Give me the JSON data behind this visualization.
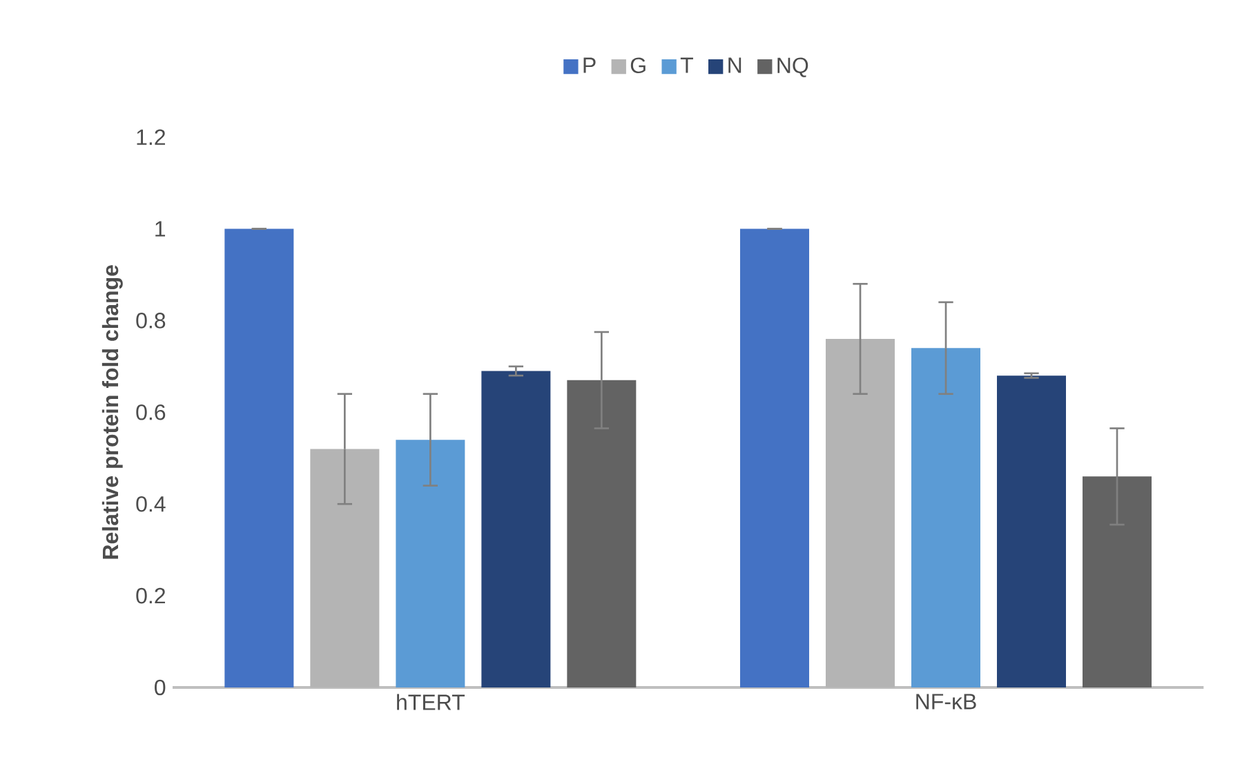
{
  "chart_data": {
    "type": "bar",
    "ylabel": "Relative protein fold change",
    "categories": [
      "hTERT",
      "NF-κB"
    ],
    "series": [
      {
        "name": "P",
        "color": "#4472c4",
        "values": [
          1.0,
          1.0
        ],
        "errors": [
          0,
          0
        ]
      },
      {
        "name": "G",
        "color": "#b4b4b4",
        "values": [
          0.52,
          0.76
        ],
        "errors": [
          0.12,
          0.12
        ]
      },
      {
        "name": "T",
        "color": "#5b9bd5",
        "values": [
          0.54,
          0.74
        ],
        "errors": [
          0.1,
          0.1
        ]
      },
      {
        "name": "N",
        "color": "#264478",
        "values": [
          0.69,
          0.68
        ],
        "errors": [
          0.01,
          0.005
        ]
      },
      {
        "name": "NQ",
        "color": "#636363",
        "values": [
          0.67,
          0.46
        ],
        "errors": [
          0.105,
          0.105
        ]
      }
    ],
    "ylim": [
      0,
      1.2
    ],
    "yticks": [
      0,
      0.2,
      0.4,
      0.6,
      0.8,
      1,
      1.2
    ],
    "legend": "top"
  }
}
